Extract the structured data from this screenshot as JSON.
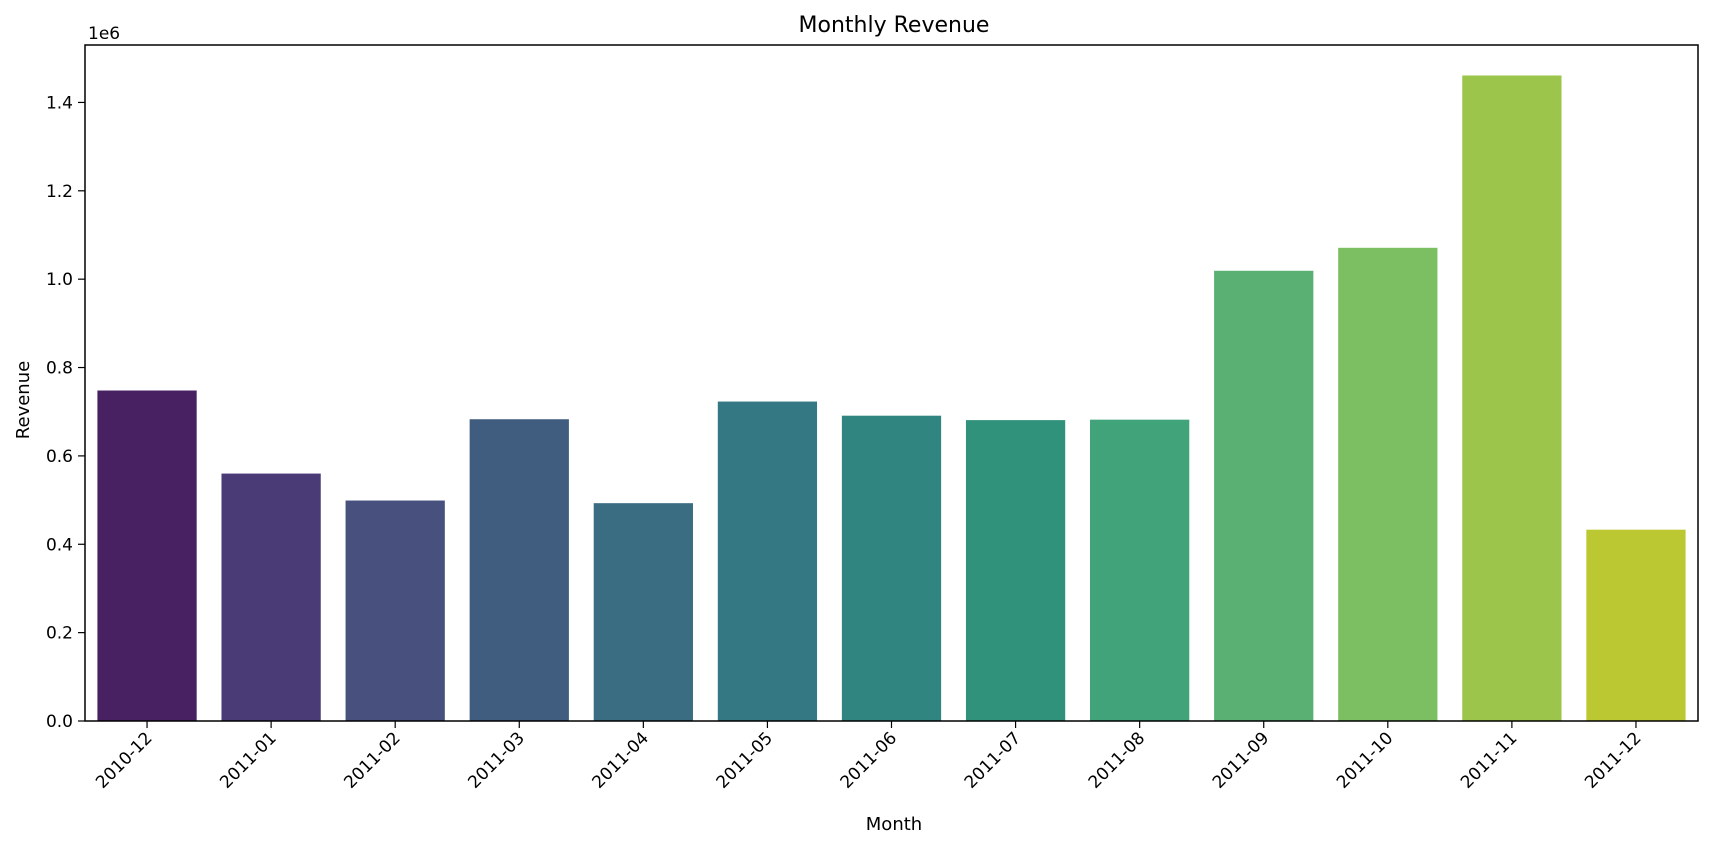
{
  "chart_data": {
    "type": "bar",
    "title": "Monthly Revenue",
    "xlabel": "Month",
    "ylabel": "Revenue",
    "y_offset_label": "1e6",
    "categories": [
      "2010-12",
      "2011-01",
      "2011-02",
      "2011-03",
      "2011-04",
      "2011-05",
      "2011-06",
      "2011-07",
      "2011-08",
      "2011-09",
      "2011-10",
      "2011-11",
      "2011-12"
    ],
    "values": [
      748000,
      560000,
      499000,
      683000,
      493000,
      723000,
      691000,
      681000,
      682000,
      1019000,
      1071000,
      1461000,
      433000
    ],
    "colors": [
      "#482163",
      "#4a3a75",
      "#48507e",
      "#405d80",
      "#3a6c82",
      "#337882",
      "#308580",
      "#31927c",
      "#40a37a",
      "#5aaf73",
      "#7cbf63",
      "#9cc54c",
      "#bcc832"
    ],
    "ylim": [
      0,
      1530000
    ],
    "yticks": [
      0,
      200000,
      400000,
      600000,
      800000,
      1000000,
      1200000,
      1400000
    ],
    "ytick_labels": [
      "0.0",
      "0.2",
      "0.4",
      "0.6",
      "0.8",
      "1.0",
      "1.2",
      "1.4"
    ],
    "grid": false,
    "legend": null
  }
}
